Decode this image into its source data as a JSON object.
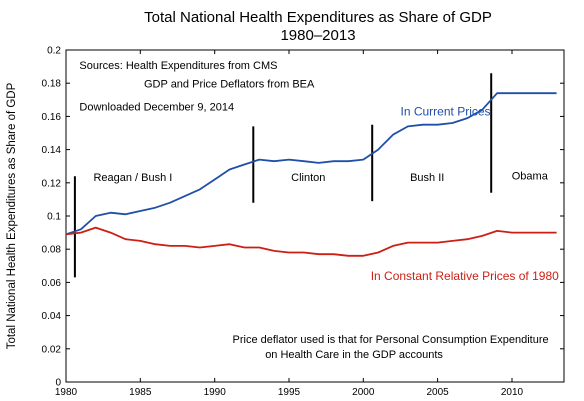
{
  "chart_data": {
    "type": "line",
    "title": "Total National Health Expenditures as Share of GDP",
    "subtitle": "1980–2013",
    "xlabel": "",
    "ylabel": "Total National Health Expenditures as Share of GDP",
    "xlim": [
      1980,
      2013.5
    ],
    "ylim": [
      0,
      0.2
    ],
    "x_ticks": [
      1980,
      1985,
      1990,
      1995,
      2000,
      2005,
      2010
    ],
    "y_ticks": [
      0,
      0.02,
      0.04,
      0.06,
      0.08,
      0.1,
      0.12,
      0.14,
      0.16,
      0.18,
      0.2
    ],
    "x_tick_labels": [
      "1980",
      "1985",
      "1990",
      "1995",
      "2000",
      "2005",
      "2010"
    ],
    "y_tick_labels": [
      "0",
      "0.02",
      "0.04",
      "0.06",
      "0.08",
      "0.1",
      "0.12",
      "0.14",
      "0.16",
      "0.18",
      "0.2"
    ],
    "grid": false,
    "x": [
      1980,
      1981,
      1982,
      1983,
      1984,
      1985,
      1986,
      1987,
      1988,
      1989,
      1990,
      1991,
      1992,
      1993,
      1994,
      1995,
      1996,
      1997,
      1998,
      1999,
      2000,
      2001,
      2002,
      2003,
      2004,
      2005,
      2006,
      2007,
      2008,
      2009,
      2010,
      2011,
      2012,
      2013
    ],
    "series": [
      {
        "name": "In Current Prices",
        "color": "#1f4fa8",
        "values": [
          0.089,
          0.092,
          0.1,
          0.102,
          0.101,
          0.103,
          0.105,
          0.108,
          0.112,
          0.116,
          0.122,
          0.128,
          0.131,
          0.134,
          0.133,
          0.134,
          0.133,
          0.132,
          0.133,
          0.133,
          0.134,
          0.14,
          0.149,
          0.154,
          0.155,
          0.155,
          0.156,
          0.159,
          0.164,
          0.174,
          0.174,
          0.174,
          0.174,
          0.174
        ]
      },
      {
        "name": "In Constant Relative Prices of 1980",
        "color": "#cc1f14",
        "values": [
          0.089,
          0.09,
          0.093,
          0.09,
          0.086,
          0.085,
          0.083,
          0.082,
          0.082,
          0.081,
          0.082,
          0.083,
          0.081,
          0.081,
          0.079,
          0.078,
          0.078,
          0.077,
          0.077,
          0.076,
          0.076,
          0.078,
          0.082,
          0.084,
          0.084,
          0.084,
          0.085,
          0.086,
          0.088,
          0.091,
          0.09,
          0.09,
          0.09,
          0.09
        ]
      }
    ],
    "eras": [
      {
        "label": "Reagan / Bush I",
        "label_x": 1984.5,
        "label_y": 0.121
      },
      {
        "label": "Clinton",
        "label_x": 1996.3,
        "label_y": 0.121
      },
      {
        "label": "Bush II",
        "label_x": 2004.3,
        "label_y": 0.121
      },
      {
        "label": "Obama",
        "label_x": 2011.2,
        "label_y": 0.122
      }
    ],
    "dividers": [
      {
        "x": 1980.6,
        "y0": 0.063,
        "y1": 0.124
      },
      {
        "x": 1992.6,
        "y0": 0.108,
        "y1": 0.154
      },
      {
        "x": 2000.6,
        "y0": 0.109,
        "y1": 0.155
      },
      {
        "x": 2008.6,
        "y0": 0.114,
        "y1": 0.186
      }
    ],
    "annotations": [
      {
        "id": "sources-1",
        "text": "Sources:  Health Expenditures from CMS",
        "x": 1980.9,
        "y": 0.1885
      },
      {
        "id": "sources-2",
        "text": "GDP and Price Deflators from BEA",
        "x": 1985.25,
        "y": 0.1775
      },
      {
        "id": "downloaded",
        "text": "Downloaded December 9, 2014",
        "x": 1980.9,
        "y": 0.1635
      },
      {
        "id": "deflator-1",
        "text": "Price deflator used is that for Personal Consumption Expenditure",
        "x": 1991.2,
        "y": 0.0235
      },
      {
        "id": "deflator-2",
        "text": "on Health Care in the GDP accounts",
        "x": 1993.4,
        "y": 0.0145
      }
    ],
    "series_labels": [
      {
        "series": 0,
        "x": 2002.5,
        "y": 0.1605
      },
      {
        "series": 1,
        "x": 2000.5,
        "y": 0.0615
      }
    ]
  }
}
